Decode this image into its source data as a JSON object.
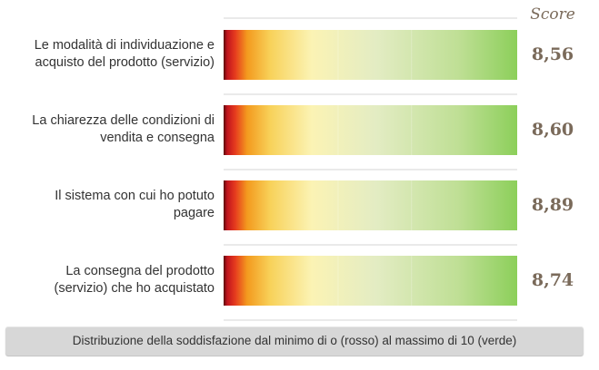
{
  "chart_data": {
    "type": "bar",
    "score_header": "Score",
    "rows": [
      {
        "label_lines": [
          "Le modalità di individuazione e",
          "acquisto del prodotto (servizio)"
        ],
        "score_label": "8,56",
        "score": 8.56
      },
      {
        "label_lines": [
          "La chiarezza delle condizioni di",
          "vendita e consegna"
        ],
        "score_label": "8,60",
        "score": 8.6
      },
      {
        "label_lines": [
          "Il sistema con cui ho potuto",
          "pagare"
        ],
        "score_label": "8,89",
        "score": 8.89
      },
      {
        "label_lines": [
          "La consegna del prodotto",
          "(servizio) che ho acquistato"
        ],
        "score_label": "8,74",
        "score": 8.74
      }
    ],
    "scale": {
      "min": 0,
      "max": 10,
      "min_color": "#c0141e",
      "max_color": "#8ccf5a"
    },
    "caption": "Distribuzione della soddisfazione dal minimo di o (rosso) al massimo di  10 (verde)"
  },
  "colors": {
    "red": "#c0141e",
    "orange": "#f39a1e",
    "yellow": "#fbf3b4",
    "green": "#8ccf5a",
    "score_text": "#7a6a5a"
  }
}
